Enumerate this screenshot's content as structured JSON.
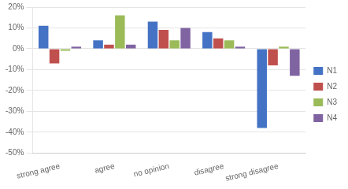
{
  "chart_data": {
    "type": "bar",
    "categories": [
      "strong agree",
      "agree",
      "no opinion",
      "disagree",
      "strong disagree"
    ],
    "series": [
      {
        "name": "N1",
        "color": "#4472C4",
        "values": [
          11,
          4,
          13,
          8,
          -38
        ]
      },
      {
        "name": "N2",
        "color": "#C0504D",
        "values": [
          -7,
          2,
          9,
          5,
          -8
        ]
      },
      {
        "name": "N3",
        "color": "#9BBB59",
        "values": [
          -1,
          16,
          4,
          4,
          1
        ]
      },
      {
        "name": "N4",
        "color": "#8064A2",
        "values": [
          1,
          2,
          10,
          1,
          -13
        ]
      }
    ],
    "ylim": [
      -50,
      20
    ],
    "yticks": [
      {
        "value": -50,
        "label": "-50%"
      },
      {
        "value": -40,
        "label": "-40%"
      },
      {
        "value": -30,
        "label": "-30%"
      },
      {
        "value": -20,
        "label": "-20%"
      },
      {
        "value": -10,
        "label": "-10%"
      },
      {
        "value": 0,
        "label": "0%"
      },
      {
        "value": 10,
        "label": "10%"
      },
      {
        "value": 20,
        "label": "20%"
      }
    ],
    "grid": true,
    "legend": "right"
  }
}
